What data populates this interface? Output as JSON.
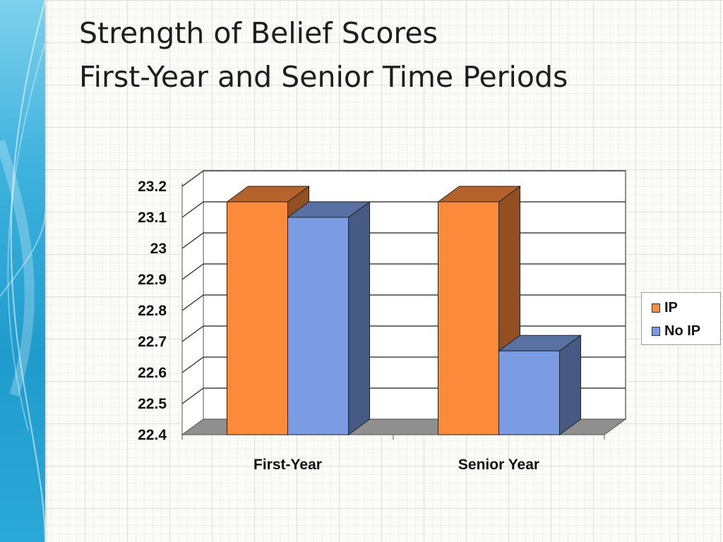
{
  "slide": {
    "title_line1": "Strength of Belief Scores",
    "title_line2": "First-Year and Senior Time Periods"
  },
  "colors": {
    "accent_band": "#2aa8d8",
    "ip": "#fb8a3a",
    "no_ip": "#7b9ce2"
  },
  "chart_data": {
    "type": "bar",
    "three_d": true,
    "categories": [
      "First-Year",
      "Senior Year"
    ],
    "series": [
      {
        "name": "IP",
        "values": [
          23.15,
          23.15
        ],
        "color": "#fb8a3a"
      },
      {
        "name": "No IP",
        "values": [
          23.1,
          22.67
        ],
        "color": "#7b9ce2"
      }
    ],
    "ylim": [
      22.4,
      23.2
    ],
    "yticks": [
      "22.4",
      "22.5",
      "22.6",
      "22.7",
      "22.8",
      "22.9",
      "23",
      "23.1",
      "23.2"
    ],
    "grid": true,
    "legend": {
      "position": "right",
      "entries": [
        "IP",
        "No IP"
      ]
    }
  }
}
